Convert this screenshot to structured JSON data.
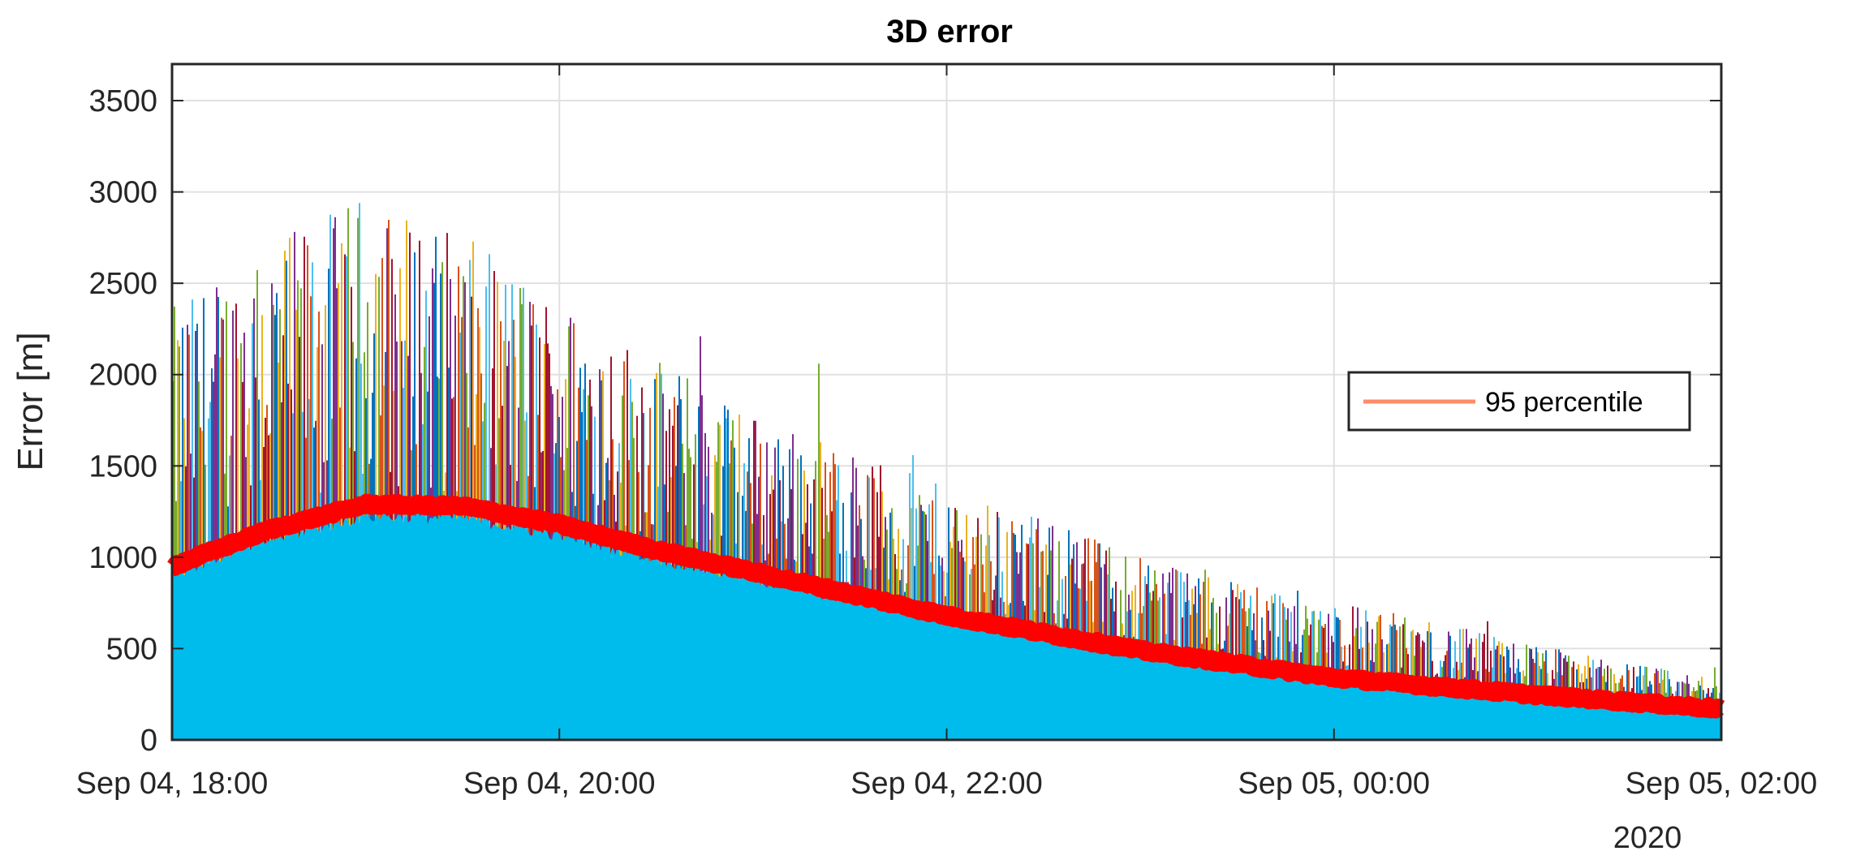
{
  "chart_data": {
    "type": "line",
    "title": "3D error",
    "xlabel": "",
    "ylabel": "Error [m]",
    "xlim": [
      "2020-09-04 18:00",
      "2020-09-05 02:00"
    ],
    "ylim": [
      0,
      3700
    ],
    "x_ticks": [
      "Sep 04, 18:00",
      "Sep 04, 20:00",
      "Sep 04, 22:00",
      "Sep 05, 00:00",
      "Sep 05, 02:00"
    ],
    "x_ticks_year": "2020",
    "y_ticks": [
      0,
      500,
      1000,
      1500,
      2000,
      2500,
      3000,
      3500
    ],
    "grid": true,
    "legend": {
      "location": "right",
      "entries": [
        "95 percentile"
      ]
    },
    "series_description": "Many multicolored per-trial error traces (dense vertical spikes) plus a cyan filled bulk of typical errors",
    "spike_envelope": {
      "x": [
        "2020-09-04 18:00",
        "2020-09-04 18:30",
        "2020-09-04 19:00",
        "2020-09-04 19:30",
        "2020-09-04 20:00",
        "2020-09-04 21:00",
        "2020-09-04 22:00",
        "2020-09-04 23:00",
        "2020-09-05 00:00",
        "2020-09-05 01:00",
        "2020-09-05 02:00"
      ],
      "y": [
        2300,
        2650,
        2900,
        2700,
        2350,
        1750,
        1350,
        1000,
        750,
        520,
        320
      ]
    },
    "series": [
      {
        "name": "95 percentile",
        "color": "#ff0000",
        "x": [
          "2020-09-04 18:00",
          "2020-09-04 18:30",
          "2020-09-04 19:00",
          "2020-09-04 19:30",
          "2020-09-04 20:00",
          "2020-09-04 20:30",
          "2020-09-04 21:00",
          "2020-09-04 22:00",
          "2020-09-04 23:00",
          "2020-09-05 00:00",
          "2020-09-05 01:00",
          "2020-09-05 02:00"
        ],
        "y": [
          950,
          1150,
          1290,
          1280,
          1180,
          1040,
          920,
          680,
          490,
          340,
          250,
          170
        ]
      }
    ],
    "colors": {
      "fill": "#00bcec",
      "percentile": "#ff0000",
      "legend_line": "#ff8c69",
      "grid": "#e0e0e0",
      "spikes": [
        "#0072bd",
        "#d95319",
        "#edb120",
        "#7e2f8e",
        "#77ac30",
        "#4dbeee",
        "#a2142f"
      ]
    }
  }
}
